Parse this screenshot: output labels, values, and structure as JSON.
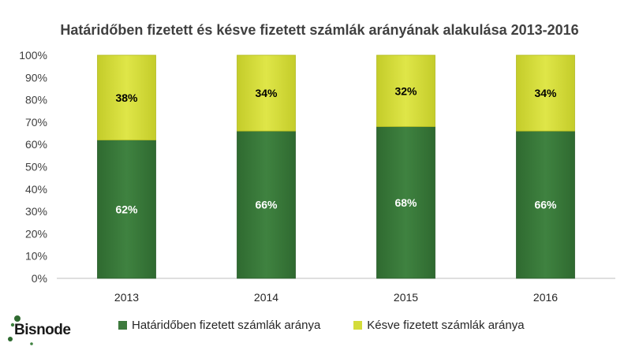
{
  "chart_data": {
    "type": "bar",
    "stacked": true,
    "title": "Határidőben fizetett és késve fizetett számlák arányának alakulása 2013-2016",
    "categories": [
      "2013",
      "2014",
      "2015",
      "2016"
    ],
    "series": [
      {
        "name": "Határidőben fizetett számlák aránya",
        "values": [
          62,
          66,
          68,
          66
        ],
        "labels": [
          "62%",
          "66%",
          "68%",
          "66%"
        ],
        "color": "#3d7a3d"
      },
      {
        "name": "Késve fizetett számlák aránya",
        "values": [
          38,
          34,
          32,
          34
        ],
        "labels": [
          "38%",
          "34%",
          "32%",
          "34%"
        ],
        "color": "#d4dc3a"
      }
    ],
    "ylim": [
      0,
      100
    ],
    "yticks": [
      "0%",
      "10%",
      "20%",
      "30%",
      "40%",
      "50%",
      "60%",
      "70%",
      "80%",
      "90%",
      "100%"
    ],
    "grid": false,
    "legend": "bottom"
  },
  "logo": {
    "text": "Bisnode"
  }
}
